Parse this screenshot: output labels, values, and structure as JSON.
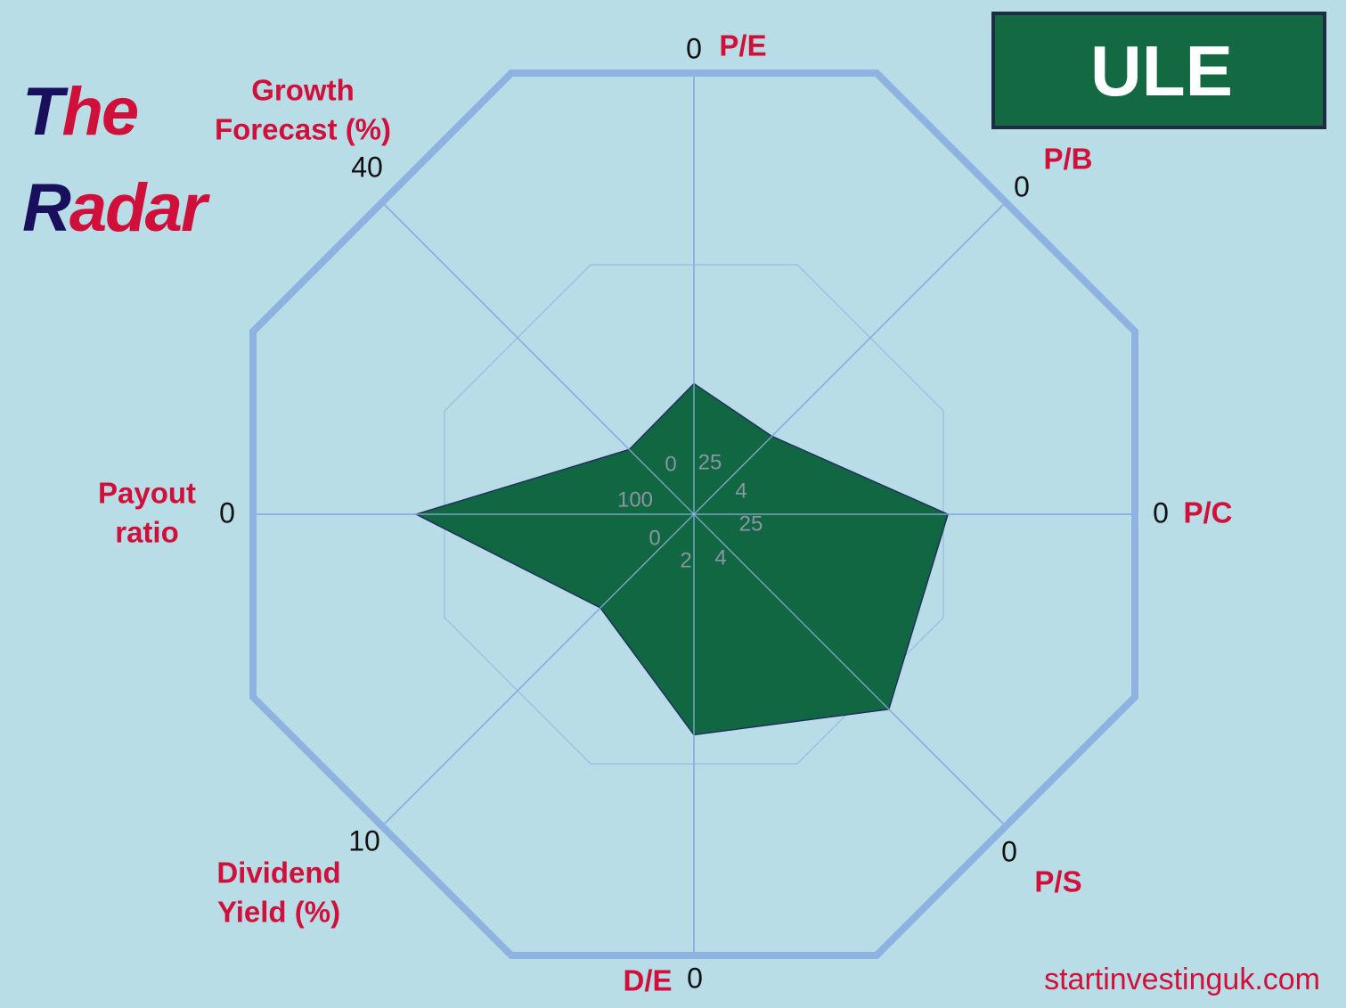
{
  "chart_data": {
    "type": "radar",
    "title": [
      "The",
      "Radar"
    ],
    "ticker": "ULE",
    "source": "startinvestinguk.com",
    "axes": [
      {
        "label": [
          "P/E"
        ],
        "rlim": [
          25,
          0
        ]
      },
      {
        "label": [
          "P/B"
        ],
        "rlim": [
          4,
          0
        ]
      },
      {
        "label": [
          "P/C"
        ],
        "rlim": [
          25,
          0
        ]
      },
      {
        "label": [
          "P/S"
        ],
        "rlim": [
          4,
          0
        ]
      },
      {
        "label": [
          "D/E"
        ],
        "rlim": [
          2,
          0
        ]
      },
      {
        "label": [
          "Dividend",
          "Yield (%)"
        ],
        "rlim": [
          0,
          10
        ]
      },
      {
        "label": [
          "Payout",
          "ratio"
        ],
        "rlim": [
          100,
          0
        ]
      },
      {
        "label": [
          "Growth",
          "Forecast (%)"
        ],
        "rlim": [
          0,
          40
        ]
      }
    ],
    "values": [
      17.6,
      3.0,
      10.6,
      1.5,
      1.0,
      3.0,
      37,
      8.3
    ],
    "color": "#116741"
  }
}
